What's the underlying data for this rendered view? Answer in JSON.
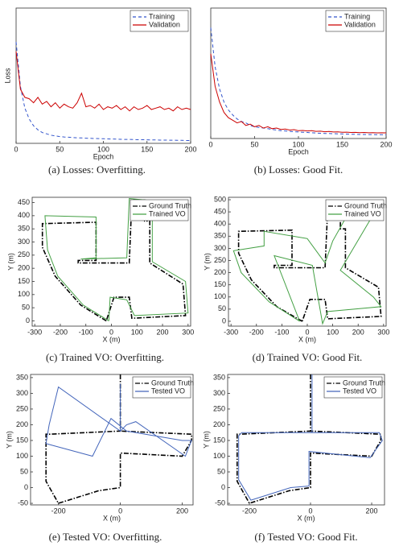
{
  "chart_data": [
    {
      "type": "line",
      "caption": "(a) Losses: Overfitting.",
      "xlabel": "Epoch",
      "ylabel": "Loss",
      "legend": "upper right",
      "x": [
        0,
        5,
        10,
        15,
        20,
        25,
        30,
        35,
        40,
        45,
        50,
        55,
        60,
        65,
        70,
        75,
        80,
        85,
        90,
        95,
        100,
        105,
        110,
        115,
        120,
        125,
        130,
        135,
        140,
        145,
        150,
        155,
        160,
        165,
        170,
        175,
        180,
        185,
        190,
        195,
        200
      ],
      "xlim": [
        0,
        200
      ],
      "xticks": [
        0,
        50,
        100,
        150,
        200
      ],
      "ylim": [
        0,
        1
      ],
      "series": [
        {
          "name": "Training",
          "color": "#3355cc",
          "style": "dashed",
          "values": [
            0.75,
            0.42,
            0.26,
            0.18,
            0.13,
            0.1,
            0.08,
            0.07,
            0.06,
            0.055,
            0.05,
            0.047,
            0.045,
            0.043,
            0.041,
            0.04,
            0.038,
            0.037,
            0.036,
            0.035,
            0.034,
            0.033,
            0.032,
            0.031,
            0.03,
            0.029,
            0.029,
            0.028,
            0.027,
            0.027,
            0.026,
            0.025,
            0.025,
            0.024,
            0.024,
            0.023,
            0.023,
            0.022,
            0.022,
            0.021,
            0.021
          ]
        },
        {
          "name": "Validation",
          "color": "#cc0000",
          "style": "solid",
          "values": [
            0.68,
            0.4,
            0.34,
            0.33,
            0.3,
            0.34,
            0.29,
            0.31,
            0.27,
            0.3,
            0.26,
            0.29,
            0.27,
            0.26,
            0.3,
            0.37,
            0.27,
            0.28,
            0.26,
            0.29,
            0.25,
            0.27,
            0.26,
            0.28,
            0.25,
            0.27,
            0.24,
            0.27,
            0.25,
            0.26,
            0.28,
            0.25,
            0.26,
            0.27,
            0.25,
            0.26,
            0.24,
            0.27,
            0.25,
            0.26,
            0.25
          ]
        }
      ]
    },
    {
      "type": "line",
      "caption": "(b) Losses: Good Fit.",
      "xlabel": "Epoch",
      "legend": "upper right",
      "x": [
        0,
        5,
        10,
        15,
        20,
        25,
        30,
        35,
        40,
        45,
        50,
        55,
        60,
        65,
        70,
        75,
        80,
        85,
        90,
        95,
        100,
        105,
        110,
        115,
        120,
        125,
        130,
        135,
        140,
        145,
        150,
        155,
        160,
        165,
        170,
        175,
        180,
        185,
        190,
        195,
        200
      ],
      "xlim": [
        0,
        200
      ],
      "xticks": [
        0,
        50,
        100,
        150,
        200
      ],
      "ylim": [
        0,
        1
      ],
      "series": [
        {
          "name": "Training",
          "color": "#3355cc",
          "style": "dashed",
          "values": [
            0.85,
            0.55,
            0.38,
            0.28,
            0.22,
            0.18,
            0.15,
            0.13,
            0.12,
            0.1,
            0.09,
            0.085,
            0.08,
            0.075,
            0.07,
            0.065,
            0.06,
            0.058,
            0.055,
            0.052,
            0.05,
            0.048,
            0.046,
            0.044,
            0.042,
            0.04,
            0.039,
            0.038,
            0.037,
            0.036,
            0.035,
            0.034,
            0.033,
            0.032,
            0.031,
            0.031,
            0.03,
            0.03,
            0.029,
            0.029,
            0.028
          ]
        },
        {
          "name": "Validation",
          "color": "#cc0000",
          "style": "solid",
          "values": [
            0.65,
            0.4,
            0.28,
            0.2,
            0.16,
            0.14,
            0.12,
            0.13,
            0.1,
            0.11,
            0.09,
            0.1,
            0.08,
            0.09,
            0.075,
            0.08,
            0.07,
            0.072,
            0.065,
            0.068,
            0.06,
            0.062,
            0.058,
            0.06,
            0.055,
            0.056,
            0.052,
            0.054,
            0.05,
            0.051,
            0.048,
            0.049,
            0.046,
            0.047,
            0.045,
            0.046,
            0.044,
            0.045,
            0.043,
            0.044,
            0.043
          ]
        }
      ]
    },
    {
      "type": "line",
      "caption": "(c) Trained VO: Overfitting.",
      "xlabel": "X (m)",
      "ylabel": "Y (m)",
      "legend": "upper right",
      "xlim": [
        -310,
        310
      ],
      "xticks": [
        -300,
        -200,
        -100,
        0,
        100,
        200,
        300
      ],
      "ylim": [
        -20,
        470
      ],
      "yticks": [
        0,
        50,
        100,
        150,
        200,
        250,
        300,
        350,
        400,
        450
      ],
      "series": [
        {
          "name": "Ground Truth",
          "color": "#000000",
          "style": "dashdot",
          "x": [
            -20,
            -120,
            -220,
            -270,
            -270,
            -60,
            -60,
            -130,
            -130,
            70,
            80,
            130,
            130,
            150,
            150,
            280,
            290,
            80,
            70,
            10,
            -20
          ],
          "values": [
            0,
            60,
            170,
            280,
            370,
            375,
            230,
            230,
            220,
            220,
            460,
            460,
            380,
            380,
            220,
            140,
            20,
            10,
            90,
            90,
            0
          ]
        },
        {
          "name": "Trained VO",
          "color": "#44a044",
          "style": "solid",
          "x": [
            -10,
            -110,
            -210,
            -250,
            -260,
            -60,
            -60,
            -120,
            60,
            70,
            190,
            160,
            160,
            290,
            300,
            90,
            60,
            -5,
            -10
          ],
          "values": [
            0,
            60,
            170,
            270,
            400,
            395,
            240,
            235,
            240,
            465,
            455,
            420,
            225,
            150,
            30,
            20,
            80,
            90,
            0
          ]
        }
      ]
    },
    {
      "type": "line",
      "caption": "(d) Trained VO: Good Fit.",
      "xlabel": "X (m)",
      "ylabel": "Y (m)",
      "legend": "upper right",
      "xlim": [
        -310,
        310
      ],
      "xticks": [
        -300,
        -200,
        -100,
        0,
        100,
        200,
        300
      ],
      "ylim": [
        -20,
        510
      ],
      "yticks": [
        0,
        50,
        100,
        150,
        200,
        250,
        300,
        350,
        400,
        450,
        500
      ],
      "series": [
        {
          "name": "Ground Truth",
          "color": "#000000",
          "style": "dashdot",
          "x": [
            -20,
            -120,
            -220,
            -270,
            -270,
            -60,
            -60,
            -130,
            -130,
            70,
            80,
            130,
            130,
            150,
            150,
            280,
            290,
            80,
            70,
            10,
            -20
          ],
          "values": [
            0,
            60,
            170,
            280,
            370,
            375,
            230,
            230,
            220,
            220,
            460,
            460,
            380,
            380,
            220,
            140,
            20,
            10,
            90,
            90,
            0
          ]
        },
        {
          "name": "Trained VO",
          "color": "#44a044",
          "style": "solid",
          "x": [
            -30,
            -150,
            -260,
            -290,
            -170,
            -170,
            0,
            70,
            100,
            170,
            230,
            260,
            130,
            260,
            290,
            80,
            60,
            20,
            -130,
            -30
          ],
          "values": [
            0,
            80,
            200,
            290,
            310,
            370,
            340,
            240,
            330,
            460,
            490,
            440,
            210,
            100,
            60,
            40,
            -10,
            230,
            270,
            0
          ]
        }
      ]
    },
    {
      "type": "line",
      "caption": "(e) Tested VO: Overfitting.",
      "xlabel": "X (m)",
      "ylabel": "Y (m)",
      "legend": "upper right",
      "xlim": [
        -290,
        235
      ],
      "xticks": [
        -200,
        0,
        200
      ],
      "ylim": [
        -55,
        360
      ],
      "yticks": [
        -50,
        0,
        50,
        100,
        150,
        200,
        250,
        300,
        350
      ],
      "series": [
        {
          "name": "Ground Truth",
          "color": "#000000",
          "style": "dashdot",
          "x": [
            0,
            0,
            -230,
            -240,
            -240,
            -200,
            -70,
            0,
            0,
            200,
            230,
            230,
            0
          ],
          "values": [
            360,
            180,
            170,
            170,
            20,
            -50,
            -10,
            0,
            110,
            100,
            150,
            170,
            180
          ]
        },
        {
          "name": "Tested VO",
          "color": "#4466bb",
          "style": "solid",
          "x": [
            0,
            0,
            -200,
            -230,
            -240,
            -90,
            -30,
            20,
            200,
            230,
            210,
            50,
            20,
            0
          ],
          "values": [
            330,
            180,
            320,
            200,
            140,
            100,
            220,
            180,
            150,
            150,
            100,
            210,
            200,
            180
          ]
        }
      ]
    },
    {
      "type": "line",
      "caption": "(f) Tested VO: Good Fit.",
      "xlabel": "X (m)",
      "ylabel": "Y (m)",
      "legend": "upper right",
      "xlim": [
        -271,
        242
      ],
      "xticks": [
        -200,
        0,
        200
      ],
      "ylim": [
        -55,
        360
      ],
      "yticks": [
        -50,
        0,
        50,
        100,
        150,
        200,
        250,
        300,
        350
      ],
      "series": [
        {
          "name": "Ground Truth",
          "color": "#000000",
          "style": "dashdot",
          "x": [
            0,
            0,
            -230,
            -240,
            -240,
            -200,
            -70,
            0,
            0,
            200,
            230,
            230,
            0
          ],
          "values": [
            360,
            180,
            170,
            170,
            20,
            -50,
            -10,
            0,
            110,
            100,
            150,
            170,
            180
          ]
        },
        {
          "name": "Tested VO",
          "color": "#4466bb",
          "style": "solid",
          "x": [
            5,
            5,
            -225,
            -235,
            -235,
            -195,
            -65,
            -5,
            -5,
            195,
            235,
            225,
            5
          ],
          "values": [
            360,
            175,
            175,
            165,
            25,
            -40,
            0,
            5,
            115,
            95,
            150,
            175,
            175
          ]
        }
      ]
    }
  ]
}
